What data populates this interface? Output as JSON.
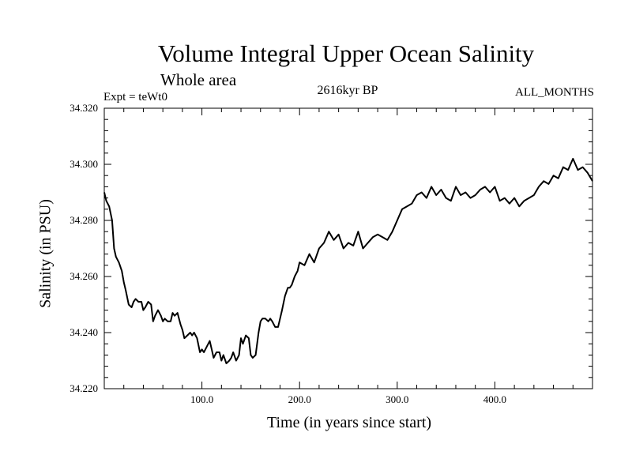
{
  "chart_data": {
    "type": "line",
    "title": "Volume Integral Upper Ocean Salinity",
    "subtitle": "Whole area",
    "experiment_label": "Expt = teWt0",
    "center_label": "2616kyr BP",
    "right_label": "ALL_MONTHS",
    "xlabel": "Time (in years since start)",
    "ylabel": "Salinity (in PSU)",
    "xlim": [
      0,
      500
    ],
    "ylim": [
      34.22,
      34.32
    ],
    "x_ticks": [
      100,
      200,
      300,
      400
    ],
    "x_tick_labels": [
      "100.0",
      "200.0",
      "300.0",
      "400.0"
    ],
    "y_ticks": [
      34.22,
      34.24,
      34.26,
      34.28,
      34.3,
      34.32
    ],
    "y_tick_labels": [
      "34.220",
      "34.240",
      "34.260",
      "34.280",
      "34.300",
      "34.320"
    ],
    "grid": false,
    "series": [
      {
        "name": "Salinity",
        "x": [
          0,
          2,
          5,
          8,
          10,
          12,
          15,
          18,
          20,
          22,
          25,
          28,
          30,
          32,
          35,
          38,
          40,
          42,
          45,
          48,
          50,
          52,
          55,
          58,
          60,
          62,
          65,
          68,
          70,
          72,
          75,
          78,
          80,
          82,
          85,
          88,
          90,
          92,
          95,
          98,
          100,
          102,
          105,
          108,
          110,
          112,
          115,
          118,
          120,
          122,
          125,
          128,
          130,
          132,
          135,
          138,
          140,
          142,
          145,
          148,
          150,
          152,
          155,
          158,
          160,
          162,
          165,
          168,
          170,
          172,
          175,
          178,
          180,
          182,
          185,
          188,
          190,
          192,
          195,
          198,
          200,
          205,
          210,
          215,
          220,
          225,
          230,
          235,
          240,
          245,
          250,
          255,
          260,
          265,
          270,
          275,
          280,
          285,
          290,
          295,
          300,
          305,
          310,
          315,
          320,
          325,
          330,
          335,
          340,
          345,
          350,
          355,
          360,
          365,
          370,
          375,
          380,
          385,
          390,
          395,
          400,
          405,
          410,
          415,
          420,
          425,
          430,
          435,
          440,
          445,
          450,
          455,
          460,
          465,
          470,
          475,
          480,
          485,
          490,
          495,
          500
        ],
        "values": [
          34.29,
          34.287,
          34.285,
          34.28,
          34.27,
          34.267,
          34.265,
          34.262,
          34.258,
          34.255,
          34.25,
          34.249,
          34.251,
          34.252,
          34.251,
          34.251,
          34.248,
          34.249,
          34.251,
          34.25,
          34.244,
          34.246,
          34.248,
          34.246,
          34.244,
          34.245,
          34.244,
          34.244,
          34.247,
          34.246,
          34.247,
          34.243,
          34.241,
          34.238,
          34.239,
          34.24,
          34.239,
          34.24,
          34.238,
          34.233,
          34.234,
          34.233,
          34.235,
          34.237,
          34.234,
          34.231,
          34.233,
          34.233,
          34.23,
          34.232,
          34.229,
          34.23,
          34.231,
          34.233,
          34.23,
          34.232,
          34.238,
          34.236,
          34.239,
          34.238,
          34.232,
          34.231,
          34.232,
          34.24,
          34.244,
          34.245,
          34.245,
          34.244,
          34.245,
          34.244,
          34.242,
          34.242,
          34.245,
          34.248,
          34.253,
          34.256,
          34.256,
          34.257,
          34.26,
          34.262,
          34.265,
          34.264,
          34.268,
          34.265,
          34.27,
          34.272,
          34.276,
          34.273,
          34.275,
          34.27,
          34.272,
          34.271,
          34.276,
          34.27,
          34.272,
          34.274,
          34.275,
          34.274,
          34.273,
          34.276,
          34.28,
          34.284,
          34.285,
          34.286,
          34.289,
          34.29,
          34.288,
          34.292,
          34.289,
          34.291,
          34.288,
          34.287,
          34.292,
          34.289,
          34.29,
          34.288,
          34.289,
          34.291,
          34.292,
          34.29,
          34.292,
          34.287,
          34.288,
          34.286,
          34.288,
          34.285,
          34.287,
          34.288,
          34.289,
          34.292,
          34.294,
          34.293,
          34.296,
          34.295,
          34.299,
          34.298,
          34.302,
          34.298,
          34.299,
          34.297,
          34.294
        ]
      }
    ]
  }
}
